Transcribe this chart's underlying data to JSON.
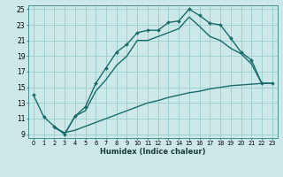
{
  "xlabel": "Humidex (Indice chaleur)",
  "bg_color": "#cce8e8",
  "grid_color": "#99cccc",
  "line_color": "#1a6b6b",
  "xlim": [
    -0.5,
    23.5
  ],
  "ylim": [
    8.5,
    25.5
  ],
  "xticks": [
    0,
    1,
    2,
    3,
    4,
    5,
    6,
    7,
    8,
    9,
    10,
    11,
    12,
    13,
    14,
    15,
    16,
    17,
    18,
    19,
    20,
    21,
    22,
    23
  ],
  "yticks": [
    9,
    11,
    13,
    15,
    17,
    19,
    21,
    23,
    25
  ],
  "line1_x": [
    0,
    1,
    2,
    3,
    4,
    5,
    6,
    7,
    8,
    9,
    10,
    11,
    12,
    13,
    14,
    15,
    16,
    17,
    18,
    19,
    20,
    21,
    22,
    23
  ],
  "line1_y": [
    14.0,
    11.2,
    10.0,
    9.0,
    11.3,
    12.5,
    15.5,
    17.5,
    19.5,
    20.5,
    22.0,
    22.3,
    22.3,
    23.3,
    23.5,
    25.0,
    24.2,
    23.2,
    23.0,
    21.3,
    19.5,
    18.5,
    15.5,
    15.5
  ],
  "line2_x": [
    2,
    3,
    4,
    5,
    6,
    7,
    8,
    9,
    10,
    11,
    12,
    13,
    14,
    15,
    16,
    17,
    18,
    19,
    20,
    21,
    22,
    23
  ],
  "line2_y": [
    10.0,
    9.0,
    11.3,
    12.0,
    14.5,
    16.0,
    17.8,
    19.0,
    21.0,
    21.0,
    21.5,
    22.0,
    22.5,
    24.0,
    22.8,
    21.5,
    21.0,
    20.0,
    19.3,
    18.0,
    15.5,
    15.5
  ],
  "line3_x": [
    2,
    3,
    4,
    5,
    6,
    7,
    8,
    9,
    10,
    11,
    12,
    13,
    14,
    15,
    16,
    17,
    18,
    19,
    20,
    21,
    22,
    23
  ],
  "line3_y": [
    9.8,
    9.2,
    9.5,
    10.0,
    10.5,
    11.0,
    11.5,
    12.0,
    12.5,
    13.0,
    13.3,
    13.7,
    14.0,
    14.3,
    14.5,
    14.8,
    15.0,
    15.2,
    15.3,
    15.4,
    15.5,
    15.5
  ]
}
